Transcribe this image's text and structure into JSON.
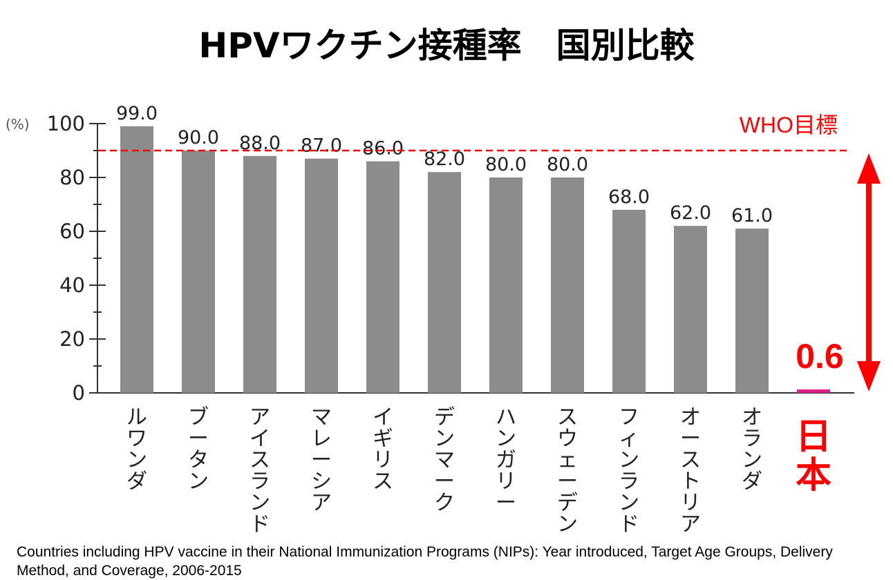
{
  "title": "HPVワクチン接種率　国別比較",
  "footnote": "Countries including HPV vaccine in their National Immunization Programs (NIPs): Year introduced, Target Age Groups, Delivery Method, and  Coverage, 2006-2015",
  "colors": {
    "bar": "#8c8c8c",
    "japan_bar": "#e0218a",
    "highlight": "#ff0000",
    "axis": "#333333",
    "tick_text": "#222222"
  },
  "chart_data": {
    "type": "bar",
    "unit_label": "(%)",
    "ylim": [
      0,
      100
    ],
    "yticks": [
      0,
      20,
      40,
      60,
      80,
      100
    ],
    "grid": false,
    "categories": [
      "ルワンダ",
      "ブータン",
      "アイスランド",
      "マレーシア",
      "イギリス",
      "デンマーク",
      "ハンガリー",
      "スウェーデン",
      "フィンランド",
      "オーストリア",
      "オランダ",
      "日本"
    ],
    "values": [
      99.0,
      90.0,
      88.0,
      87.0,
      86.0,
      82.0,
      80.0,
      80.0,
      68.0,
      62.0,
      61.0,
      0.6
    ],
    "value_labels": [
      "99.0",
      "90.0",
      "88.0",
      "87.0",
      "86.0",
      "82.0",
      "80.0",
      "80.0",
      "68.0",
      "62.0",
      "61.0",
      "0.6"
    ],
    "highlight_index": 11,
    "reference_line": {
      "value": 90,
      "label": "WHO目標"
    }
  }
}
